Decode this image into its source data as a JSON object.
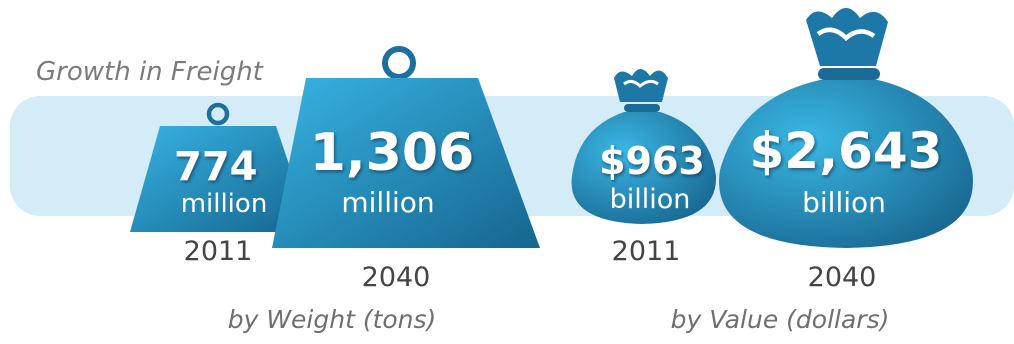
{
  "chart_data": {
    "type": "pictograph",
    "title": "Growth in Freight",
    "groups": [
      {
        "label": "by Weight (tons)",
        "icon": "weight-icon",
        "items": [
          {
            "year": "2011",
            "value": 774,
            "value_label": "774",
            "unit": "million"
          },
          {
            "year": "2040",
            "value": 1306,
            "value_label": "1,306",
            "unit": "million"
          }
        ]
      },
      {
        "label": "by Value (dollars)",
        "icon": "money-bag-icon",
        "items": [
          {
            "year": "2011",
            "value": 963,
            "value_label": "$963",
            "unit": "billion"
          },
          {
            "year": "2040",
            "value": 2643,
            "value_label": "$2,643",
            "unit": "billion"
          }
        ]
      }
    ]
  },
  "colors": {
    "band": "#d4ecf7",
    "icon_light": "#2fa8d8",
    "icon_dark": "#1a6f9a",
    "icon_stroke": "#1d6f9e"
  }
}
